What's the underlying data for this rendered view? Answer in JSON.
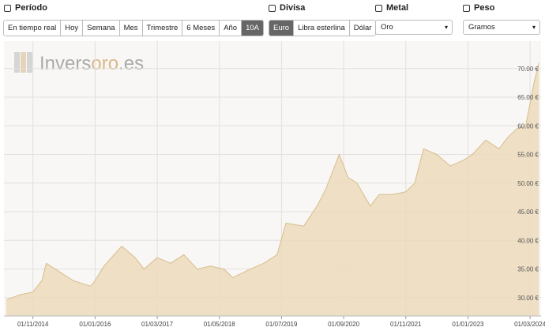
{
  "controls": {
    "period": {
      "label": "Período",
      "options": [
        "En tiempo real",
        "Hoy",
        "Semana",
        "Mes",
        "Trimestre",
        "6 Meses",
        "Año",
        "10A"
      ],
      "active": 7
    },
    "currency": {
      "label": "Divisa",
      "options": [
        "Euro",
        "Libra esterlina",
        "Dólar"
      ],
      "active": 0
    },
    "metal": {
      "label": "Metal",
      "value": "Oro"
    },
    "weight": {
      "label": "Peso",
      "value": "Gramos"
    }
  },
  "logo": {
    "part1": "Invers",
    "part2": "oro",
    "part3": ".es"
  },
  "chart_data": {
    "type": "area",
    "color": "#ecdcc0",
    "line_color": "#d8bd8c",
    "x": [
      "01/05/2014",
      "01/08/2014",
      "01/11/2014",
      "01/01/2015",
      "01/02/2015",
      "01/05/2015",
      "01/08/2015",
      "01/12/2015",
      "01/01/2016",
      "01/03/2016",
      "01/07/2016",
      "01/10/2016",
      "01/12/2016",
      "01/03/2017",
      "01/06/2017",
      "01/09/2017",
      "01/12/2017",
      "01/03/2018",
      "01/06/2018",
      "01/08/2018",
      "01/12/2018",
      "01/03/2019",
      "01/06/2019",
      "01/08/2019",
      "01/12/2019",
      "01/03/2020",
      "01/05/2020",
      "01/08/2020",
      "01/10/2020",
      "01/12/2020",
      "01/03/2021",
      "01/05/2021",
      "01/08/2021",
      "01/11/2021",
      "01/01/2022",
      "01/03/2022",
      "01/06/2022",
      "01/09/2022",
      "01/12/2022",
      "01/02/2023",
      "01/05/2023",
      "01/08/2023",
      "01/10/2023",
      "01/12/2023",
      "01/02/2024",
      "01/04/2024",
      "01/05/2024"
    ],
    "values": [
      29.6,
      30.5,
      31,
      33,
      36,
      34.5,
      33,
      32,
      33,
      35.5,
      39,
      37,
      35,
      37,
      36,
      37.5,
      35,
      35.5,
      35,
      33.5,
      35,
      36,
      37.5,
      43,
      42.5,
      46,
      49,
      55,
      51,
      50,
      46,
      48,
      48,
      48.5,
      50,
      56,
      55,
      53,
      54,
      55,
      57.5,
      56,
      58,
      59.5,
      60,
      68,
      71
    ],
    "xlim": [
      "15/04/2014",
      "15/05/2024"
    ],
    "xticks": [
      "01/11/2014",
      "01/01/2016",
      "01/03/2017",
      "01/05/2018",
      "01/07/2019",
      "01/09/2020",
      "01/11/2021",
      "01/01/2023",
      "01/03/2024"
    ],
    "ylim": [
      26.8,
      74.8
    ],
    "yticks": [
      {
        "value": 30,
        "label": "30.00 €"
      },
      {
        "value": 35,
        "label": "35.00 €"
      },
      {
        "value": 40,
        "label": "40.00 €"
      },
      {
        "value": 45,
        "label": "45.00 €"
      },
      {
        "value": 50,
        "label": "50.00 €"
      },
      {
        "value": 55,
        "label": "55.00 €"
      },
      {
        "value": 60,
        "label": "60.00 €"
      },
      {
        "value": 65,
        "label": "65.00 €"
      },
      {
        "value": 70,
        "label": "70.00 €"
      }
    ],
    "grid": true
  }
}
